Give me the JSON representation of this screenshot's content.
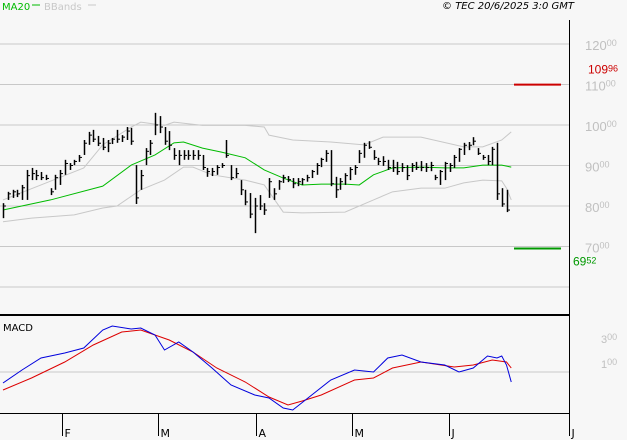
{
  "header": {
    "legend_ma": "MA20",
    "legend_bb": "BBands",
    "copyright": "© TEC 20/6/2025 3:0 GMT"
  },
  "colors": {
    "bg": "#f7f7f7",
    "ma": "#00bb00",
    "bb": "#c8c8c8",
    "bars": "#000000",
    "grid": "#c8c8c8",
    "resistance": "#cc0000",
    "support": "#009900",
    "macd": "#0000dd",
    "signal": "#dd0000",
    "axis_text": "#c0c0c0"
  },
  "chart_data": [
    {
      "type": "ohlc",
      "title": "Price",
      "ylim": [
        60,
        125
      ],
      "yticks": [
        {
          "v": 120,
          "int": "120",
          "dec": "00"
        },
        {
          "v": 110,
          "int": "110",
          "dec": "00"
        },
        {
          "v": 100,
          "int": "100",
          "dec": "00"
        },
        {
          "v": 90,
          "int": "90",
          "dec": "00"
        },
        {
          "v": 80,
          "int": "80",
          "dec": "00"
        },
        {
          "v": 70,
          "int": "70",
          "dec": "00"
        }
      ],
      "gridlines": [
        120,
        110,
        100,
        90,
        80,
        70,
        60
      ],
      "xticks": [
        {
          "x": 12.4,
          "label": "F"
        },
        {
          "x": 32.6,
          "label": "M"
        },
        {
          "x": 53.3,
          "label": "A"
        },
        {
          "x": 73.5,
          "label": "M"
        },
        {
          "x": 93.9,
          "label": "J"
        },
        {
          "x": 119.2,
          "label": "J"
        }
      ],
      "high": [
        80.7,
        83.5,
        84.0,
        84.0,
        85.2,
        88.9,
        89.4,
        88.9,
        88.4,
        87.7,
        84.4,
        87.7,
        88.9,
        91.4,
        90.6,
        91.4,
        92.6,
        96.3,
        98.3,
        98.8,
        97.3,
        96.8,
        96.3,
        96.8,
        98.8,
        97.5,
        99.5,
        99.3,
        90.1,
        88.9,
        94.3,
        96.3,
        103.0,
        102.2,
        99.5,
        98.5,
        94.3,
        93.8,
        93.8,
        93.8,
        93.8,
        93.8,
        92.6,
        89.4,
        89.4,
        90.1,
        90.6,
        96.3,
        90.1,
        89.4,
        86.4,
        84.0,
        83.2,
        82.0,
        82.7,
        80.7,
        86.9,
        84.4,
        86.4,
        87.7,
        87.4,
        86.9,
        86.9,
        86.9,
        87.7,
        88.9,
        90.6,
        91.9,
        93.8,
        93.8,
        87.2,
        86.9,
        88.1,
        89.6,
        90.1,
        93.8,
        95.6,
        96.0,
        93.8,
        91.9,
        92.3,
        91.4,
        91.4,
        90.9,
        90.6,
        90.1,
        90.6,
        90.9,
        91.1,
        90.6,
        90.9,
        87.7,
        88.9,
        90.9,
        90.6,
        92.6,
        94.3,
        95.6,
        95.8,
        97.0,
        94.3,
        92.6,
        92.6,
        94.6,
        95.6,
        84.4,
        84.0
      ],
      "low": [
        77.0,
        81.5,
        82.0,
        82.2,
        81.5,
        81.5,
        86.4,
        86.4,
        86.4,
        86.4,
        82.7,
        84.0,
        85.2,
        87.7,
        88.9,
        90.1,
        90.9,
        92.6,
        95.1,
        95.8,
        94.8,
        93.8,
        93.3,
        95.3,
        95.6,
        95.8,
        96.3,
        95.1,
        80.5,
        84.0,
        90.1,
        92.6,
        97.5,
        98.0,
        95.1,
        93.8,
        91.4,
        90.1,
        91.4,
        91.4,
        91.4,
        91.4,
        88.9,
        87.2,
        87.4,
        87.7,
        89.4,
        91.9,
        86.4,
        86.9,
        82.7,
        80.2,
        77.0,
        73.3,
        79.0,
        77.8,
        82.0,
        81.5,
        84.0,
        85.7,
        85.9,
        84.4,
        84.9,
        85.2,
        86.0,
        86.9,
        87.7,
        89.6,
        90.9,
        84.9,
        82.0,
        84.0,
        85.2,
        86.4,
        87.7,
        90.6,
        91.9,
        94.1,
        91.4,
        90.1,
        89.9,
        88.9,
        88.4,
        87.7,
        88.4,
        86.4,
        88.4,
        88.9,
        88.6,
        88.4,
        88.6,
        86.4,
        85.2,
        86.4,
        88.4,
        89.4,
        90.9,
        92.6,
        93.8,
        95.0,
        92.6,
        91.4,
        90.1,
        90.1,
        81.5,
        79.8,
        78.5
      ],
      "close": [
        80.0,
        83.0,
        83.5,
        83.0,
        84.5,
        87.5,
        88.0,
        87.5,
        87.0,
        86.8,
        83.5,
        87.0,
        88.0,
        90.5,
        90.0,
        91.0,
        92.0,
        95.5,
        97.5,
        96.5,
        95.5,
        94.5,
        95.5,
        96.5,
        96.5,
        97.0,
        98.5,
        96.0,
        82.0,
        87.5,
        93.5,
        95.5,
        100.0,
        99.5,
        96.0,
        95.0,
        92.5,
        92.5,
        92.5,
        92.5,
        92.5,
        92.5,
        89.5,
        88.5,
        88.5,
        89.5,
        90.0,
        92.5,
        87.0,
        88.0,
        84.0,
        81.0,
        78.0,
        80.0,
        80.0,
        79.0,
        86.0,
        83.0,
        86.0,
        87.0,
        86.5,
        85.5,
        86.0,
        86.5,
        87.0,
        88.5,
        90.0,
        91.5,
        93.0,
        85.5,
        84.0,
        86.0,
        87.5,
        89.0,
        89.5,
        93.0,
        95.0,
        94.5,
        92.0,
        91.0,
        91.0,
        89.5,
        89.5,
        88.5,
        89.5,
        87.5,
        90.0,
        89.5,
        89.5,
        89.5,
        90.0,
        87.0,
        88.5,
        90.5,
        90.0,
        92.0,
        94.0,
        95.0,
        95.0,
        96.0,
        93.0,
        92.0,
        91.0,
        94.0,
        83.0,
        80.5,
        79.0
      ],
      "overlays": {
        "ma20": [
          [
            0,
            79.0
          ],
          [
            10,
            81.5
          ],
          [
            21,
            84.9
          ],
          [
            27,
            90.1
          ],
          [
            32,
            92.6
          ],
          [
            36,
            95.6
          ],
          [
            38,
            95.8
          ],
          [
            42,
            94.3
          ],
          [
            46,
            93.3
          ],
          [
            51,
            91.9
          ],
          [
            55,
            88.9
          ],
          [
            59,
            86.9
          ],
          [
            63,
            85.2
          ],
          [
            67,
            85.4
          ],
          [
            72,
            85.4
          ],
          [
            75,
            85.2
          ],
          [
            78,
            87.7
          ],
          [
            82,
            89.4
          ],
          [
            88,
            89.6
          ],
          [
            93,
            89.4
          ],
          [
            97,
            89.4
          ],
          [
            101,
            90.1
          ],
          [
            105,
            90.1
          ],
          [
            107,
            89.6
          ]
        ],
        "bb_upper": [
          [
            0,
            81.5
          ],
          [
            8,
            85.2
          ],
          [
            17,
            89.4
          ],
          [
            21,
            95.1
          ],
          [
            27,
            99.5
          ],
          [
            29,
            100.7
          ],
          [
            34,
            99.9
          ],
          [
            36,
            100.7
          ],
          [
            42,
            99.9
          ],
          [
            51,
            99.9
          ],
          [
            55,
            99.5
          ],
          [
            56,
            97.5
          ],
          [
            61,
            96.3
          ],
          [
            69,
            95.8
          ],
          [
            76,
            95.1
          ],
          [
            80,
            97.0
          ],
          [
            88,
            97.0
          ],
          [
            97,
            94.6
          ],
          [
            101,
            94.6
          ],
          [
            105,
            96.3
          ],
          [
            107,
            98.3
          ]
        ],
        "bb_lower": [
          [
            0,
            76.1
          ],
          [
            6,
            77.0
          ],
          [
            15,
            77.8
          ],
          [
            21,
            79.5
          ],
          [
            24,
            80.0
          ],
          [
            29,
            84.0
          ],
          [
            34,
            86.4
          ],
          [
            38,
            89.6
          ],
          [
            40,
            89.6
          ],
          [
            44,
            87.7
          ],
          [
            51,
            86.4
          ],
          [
            55,
            85.2
          ],
          [
            59,
            78.5
          ],
          [
            63,
            78.3
          ],
          [
            72,
            78.5
          ],
          [
            78,
            81.5
          ],
          [
            82,
            83.5
          ],
          [
            88,
            84.4
          ],
          [
            93,
            84.4
          ],
          [
            97,
            85.7
          ],
          [
            101,
            86.4
          ],
          [
            105,
            86.2
          ],
          [
            106,
            84.4
          ],
          [
            107,
            81.5
          ]
        ]
      },
      "levels": [
        {
          "name": "resistance",
          "value": 109.96,
          "int": "109",
          "dec": "96"
        },
        {
          "name": "support",
          "value": 69.52,
          "int": "69",
          "dec": "52"
        }
      ]
    },
    {
      "type": "line",
      "title": "MACD",
      "yticks": [
        {
          "v": 300,
          "int": "3",
          "dec": "00"
        },
        {
          "v": 100,
          "int": "1",
          "dec": "00"
        }
      ],
      "series": [
        {
          "name": "MACD",
          "points": [
            [
              0,
              -60
            ],
            [
              4,
              44
            ],
            [
              8,
              140
            ],
            [
              13,
              180
            ],
            [
              17,
              220
            ],
            [
              21,
              364
            ],
            [
              23,
              396
            ],
            [
              27,
              372
            ],
            [
              29,
              380
            ],
            [
              32,
              324
            ],
            [
              34,
              204
            ],
            [
              37,
              268
            ],
            [
              40,
              188
            ],
            [
              44,
              60
            ],
            [
              48,
              -76
            ],
            [
              53,
              -156
            ],
            [
              56,
              -180
            ],
            [
              59,
              -260
            ],
            [
              61,
              -276
            ],
            [
              65,
              -156
            ],
            [
              69,
              -36
            ],
            [
              74,
              44
            ],
            [
              78,
              28
            ],
            [
              81,
              140
            ],
            [
              84,
              164
            ],
            [
              88,
              108
            ],
            [
              93,
              84
            ],
            [
              96,
              28
            ],
            [
              99,
              60
            ],
            [
              102,
              156
            ],
            [
              104,
              140
            ],
            [
              105,
              156
            ],
            [
              106,
              84
            ],
            [
              107,
              -52
            ]
          ]
        },
        {
          "name": "Signal",
          "points": [
            [
              0,
              -116
            ],
            [
              6,
              -20
            ],
            [
              13,
              108
            ],
            [
              19,
              244
            ],
            [
              25,
              348
            ],
            [
              29,
              364
            ],
            [
              35,
              284
            ],
            [
              40,
              188
            ],
            [
              45,
              60
            ],
            [
              51,
              -52
            ],
            [
              56,
              -172
            ],
            [
              60,
              -236
            ],
            [
              63,
              -204
            ],
            [
              67,
              -156
            ],
            [
              74,
              -36
            ],
            [
              78,
              -20
            ],
            [
              82,
              60
            ],
            [
              88,
              108
            ],
            [
              95,
              68
            ],
            [
              99,
              84
            ],
            [
              103,
              124
            ],
            [
              106,
              108
            ],
            [
              107,
              60
            ]
          ]
        }
      ]
    }
  ]
}
